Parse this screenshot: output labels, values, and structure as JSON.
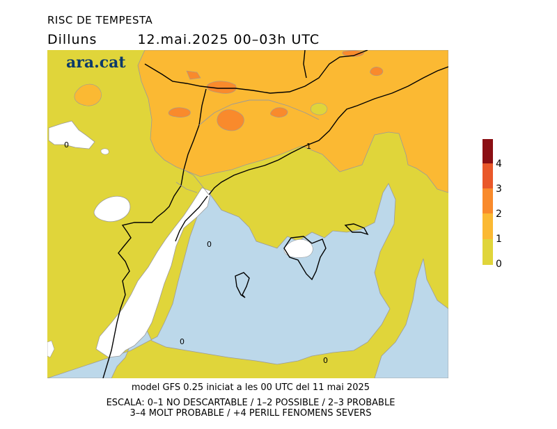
{
  "header": {
    "title": "RISC DE TEMPESTA",
    "day": "Dilluns",
    "datetime": "12.mai.2025 00–03h UTC"
  },
  "logo": {
    "text": "ara.cat"
  },
  "map": {
    "contour_labels": [
      "0",
      "1",
      "0",
      "0",
      "0"
    ],
    "colors": {
      "sea_no_risk": "#bcd8ea",
      "land_no_risk": "#ffffff",
      "level_0_1": "#e0d53a",
      "level_1_2": "#fbb933",
      "level_2_3": "#f98a2c",
      "level_3_4": "#e9582a",
      "level_4_plus": "#8b0f14",
      "border": "#000000",
      "province_line": "#9a9a9a"
    }
  },
  "legend": {
    "labels": [
      "4",
      "3",
      "2",
      "1",
      "0"
    ],
    "colors": [
      "#8b0f14",
      "#e9582a",
      "#f98a2c",
      "#fbb933",
      "#e0d53a"
    ]
  },
  "footer": {
    "model_line": "model GFS 0.25 iniciat a les 00 UTC del 11 mai 2025",
    "scale_line1": "ESCALA: 0–1 NO DESCARTABLE / 1–2 POSSIBLE / 2–3 PROBABLE",
    "scale_line2": "3–4 MOLT PROBABLE / +4 PERILL FENOMENS SEVERS"
  }
}
